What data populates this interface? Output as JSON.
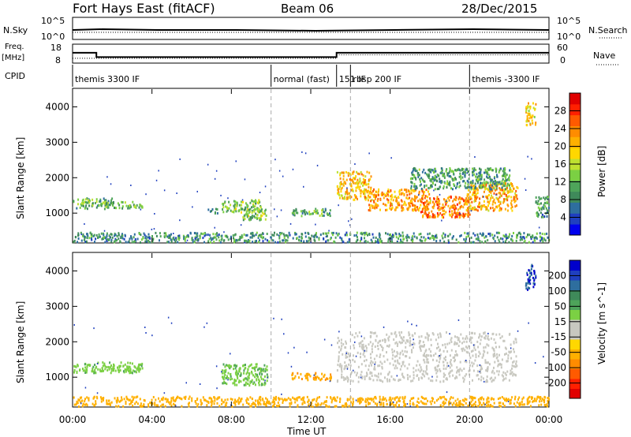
{
  "header": {
    "title": "Fort Hays East (fitACF)",
    "beam": "Beam 06",
    "date": "28/Dec/2015"
  },
  "top_panels": {
    "nsky": {
      "left_label": "N.Sky",
      "right_label": "N.Search",
      "left_ticks": [
        "10^5",
        "10^0"
      ],
      "right_ticks": [
        "10^5",
        "10^0"
      ]
    },
    "freq": {
      "left_label": "Freq.",
      "left_unit": "[MHz]",
      "left_ticks": [
        "18",
        "8"
      ],
      "right_label": "Nave",
      "right_ticks": [
        "60",
        "0"
      ]
    },
    "cpid": {
      "label": "CPID",
      "segments": [
        {
          "name": "themis 3300 IF",
          "start_hour": 0,
          "end_hour": 10
        },
        {
          "name": "normal (fast)",
          "start_hour": 10,
          "end_hour": 13.3
        },
        {
          "name": "151 IF",
          "start_hour": 13.3,
          "end_hour": 14
        },
        {
          "name": "rbsp 200 IF",
          "start_hour": 14,
          "end_hour": 20
        },
        {
          "name": "themis -3300 IF",
          "start_hour": 20,
          "end_hour": 24
        }
      ]
    }
  },
  "power_colorbar": {
    "label": "Power [dB]",
    "ticks": [
      "28",
      "24",
      "20",
      "16",
      "12",
      "8",
      "4"
    ],
    "colors": [
      "#0000ee",
      "#1f3fbf",
      "#2e6e9e",
      "#3f8a5a",
      "#4ea45a",
      "#7bd043",
      "#bfe030",
      "#ffd700",
      "#ffb000",
      "#ff8c00",
      "#ff5a00",
      "#ff2000",
      "#e00000"
    ]
  },
  "velocity_colorbar": {
    "label": "Velocity [m s^-1]",
    "ticks": [
      "200",
      "100",
      "50",
      "15",
      "-15",
      "-50",
      "-100",
      "-200"
    ],
    "colors": [
      "#0000cc",
      "#1f3fbf",
      "#2e6e9e",
      "#3f8a5a",
      "#4ea45a",
      "#7bd043",
      "#c8c8c0",
      "#c8c8c0",
      "#ffd700",
      "#ffb000",
      "#ff8c00",
      "#ff5a00",
      "#ff2000",
      "#e00000"
    ]
  },
  "axes": {
    "ylabel": "Slant Range [km]",
    "xlabel": "Time UT",
    "yticks": [
      "1000",
      "2000",
      "3000",
      "4000"
    ],
    "xticks": [
      "00:00",
      "04:00",
      "08:00",
      "12:00",
      "16:00",
      "20:00",
      "00:00"
    ]
  },
  "chart_data": {
    "type": "heatmap",
    "x_range_hours": [
      0,
      24
    ],
    "y_range_km": [
      180,
      4500
    ],
    "dashed_vlines_hours": [
      10,
      14,
      20
    ],
    "power_blobs": [
      {
        "t0": 0.0,
        "t1": 2.0,
        "r0": 1150,
        "r1": 1450,
        "db": 11
      },
      {
        "t0": 1.5,
        "t1": 3.5,
        "r0": 1150,
        "r1": 1350,
        "db": 12
      },
      {
        "t0": 6.8,
        "t1": 7.3,
        "r0": 1000,
        "r1": 1150,
        "db": 10
      },
      {
        "t0": 7.5,
        "t1": 9.5,
        "r0": 1050,
        "r1": 1400,
        "db": 13
      },
      {
        "t0": 8.5,
        "t1": 9.8,
        "r0": 800,
        "r1": 1150,
        "db": 13
      },
      {
        "t0": 11.0,
        "t1": 13.0,
        "r0": 950,
        "r1": 1150,
        "db": 11
      },
      {
        "t0": 13.3,
        "t1": 15.0,
        "r0": 1400,
        "r1": 2200,
        "db": 20
      },
      {
        "t0": 14.8,
        "t1": 18.0,
        "r0": 1100,
        "r1": 1700,
        "db": 22
      },
      {
        "t0": 17.5,
        "t1": 20.0,
        "r0": 900,
        "r1": 1500,
        "db": 24
      },
      {
        "t0": 19.8,
        "t1": 22.4,
        "r0": 1100,
        "r1": 1900,
        "db": 21
      },
      {
        "t0": 17.0,
        "t1": 22.0,
        "r0": 1700,
        "r1": 2300,
        "db": 10
      },
      {
        "t0": 22.8,
        "t1": 23.3,
        "r0": 3500,
        "r1": 4200,
        "db": 19
      },
      {
        "t0": 23.3,
        "t1": 24.0,
        "r0": 900,
        "r1": 1500,
        "db": 9
      },
      {
        "t0": 0.0,
        "t1": 24.0,
        "r0": 200,
        "r1": 480,
        "db": 9
      }
    ],
    "velocity_blobs": [
      {
        "t0": 0.0,
        "t1": 3.5,
        "r0": 1150,
        "r1": 1450,
        "vel": 40
      },
      {
        "t0": 7.5,
        "t1": 9.8,
        "r0": 800,
        "r1": 1400,
        "vel": 40
      },
      {
        "t0": 11.0,
        "t1": 13.0,
        "r0": 950,
        "r1": 1150,
        "vel": -40
      },
      {
        "t0": 13.3,
        "t1": 22.4,
        "r0": 900,
        "r1": 2300,
        "vel": 0
      },
      {
        "t0": 22.8,
        "t1": 23.3,
        "r0": 3500,
        "r1": 4200,
        "vel": 200
      },
      {
        "t0": 0.0,
        "t1": 24.0,
        "r0": 200,
        "r1": 480,
        "vel": -30
      }
    ],
    "nsky_series": {
      "name": "N.Sky",
      "level": 1.0
    },
    "freq_series": [
      {
        "t0": 0.0,
        "t1": 1.2,
        "mhz": 13.5
      },
      {
        "t0": 1.2,
        "t1": 13.3,
        "mhz": 11.0
      },
      {
        "t0": 13.3,
        "t1": 24.0,
        "mhz": 13.5
      }
    ],
    "nave_series": [
      {
        "t0": 0.0,
        "t1": 1.2,
        "nave": 14
      },
      {
        "t0": 1.2,
        "t1": 13.3,
        "nave": 14
      },
      {
        "t0": 13.3,
        "t1": 24.0,
        "nave": 26
      }
    ]
  }
}
